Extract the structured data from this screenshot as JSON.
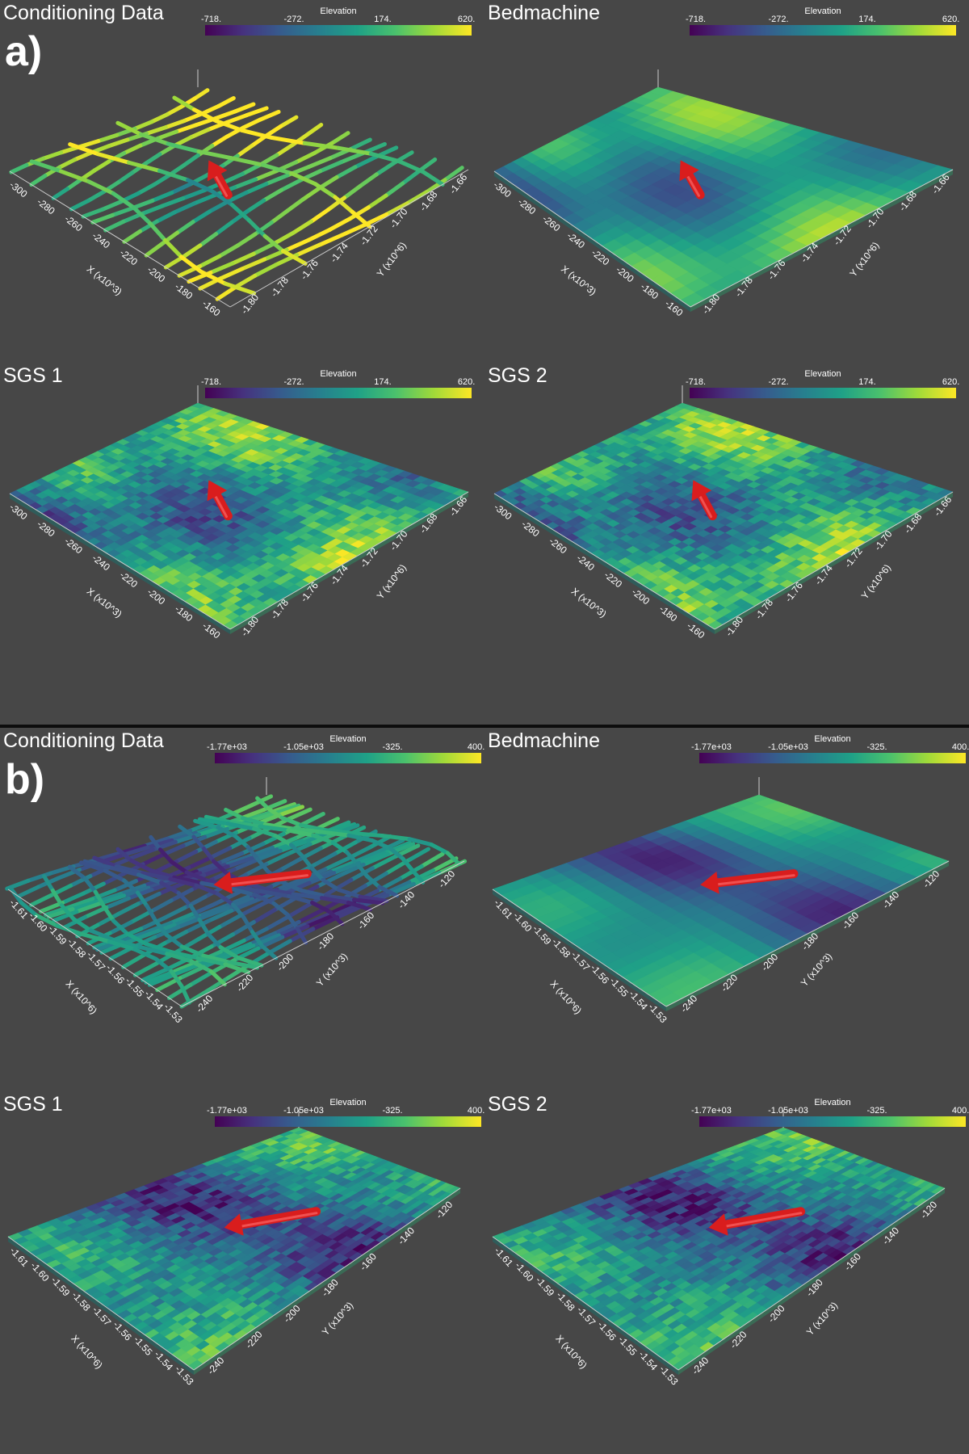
{
  "colormap": [
    "#440154",
    "#46327e",
    "#365c8d",
    "#277f8e",
    "#1fa187",
    "#4ac16d",
    "#a0da39",
    "#fde725"
  ],
  "arrow_color": "#d91d1d",
  "sections": [
    {
      "letter": "a)",
      "colorbar": {
        "label": "Elevation",
        "ticks": [
          "-718.",
          "-272.",
          "174.",
          "620."
        ]
      },
      "axes": {
        "x_title": "X (x10^3)",
        "y_title": "Y (x10^6)",
        "x_ticks": [
          "-300",
          "-280",
          "-260",
          "-240",
          "-220",
          "-200",
          "-180",
          "-160"
        ],
        "y_ticks": [
          "-1.80",
          "-1.78",
          "-1.76",
          "-1.74",
          "-1.72",
          "-1.70",
          "-1.68",
          "-1.66"
        ]
      },
      "panels": [
        {
          "title": "Conditioning Data",
          "kind": "tracks"
        },
        {
          "title": "Bedmachine",
          "kind": "smooth"
        },
        {
          "title": "SGS 1",
          "kind": "noisy"
        },
        {
          "title": "SGS 2",
          "kind": "noisy"
        }
      ]
    },
    {
      "letter": "b)",
      "colorbar": {
        "label": "Elevation",
        "ticks": [
          "-1.77e+03",
          "-1.05e+03",
          "-325.",
          "400."
        ]
      },
      "axes": {
        "x_title": "X (x10^6)",
        "y_title": "Y (x10^3)",
        "x_ticks": [
          "-1.61",
          "-1.60",
          "-1.59",
          "-1.58",
          "-1.57",
          "-1.56",
          "-1.55",
          "-1.54",
          "-1.53"
        ],
        "y_ticks": [
          "-240",
          "-220",
          "-200",
          "-180",
          "-160",
          "-140",
          "-120"
        ]
      },
      "panels": [
        {
          "title": "Conditioning Data",
          "kind": "tracks"
        },
        {
          "title": "Bedmachine",
          "kind": "smooth"
        },
        {
          "title": "SGS 1",
          "kind": "noisy"
        },
        {
          "title": "SGS 2",
          "kind": "noisy"
        }
      ]
    }
  ]
}
